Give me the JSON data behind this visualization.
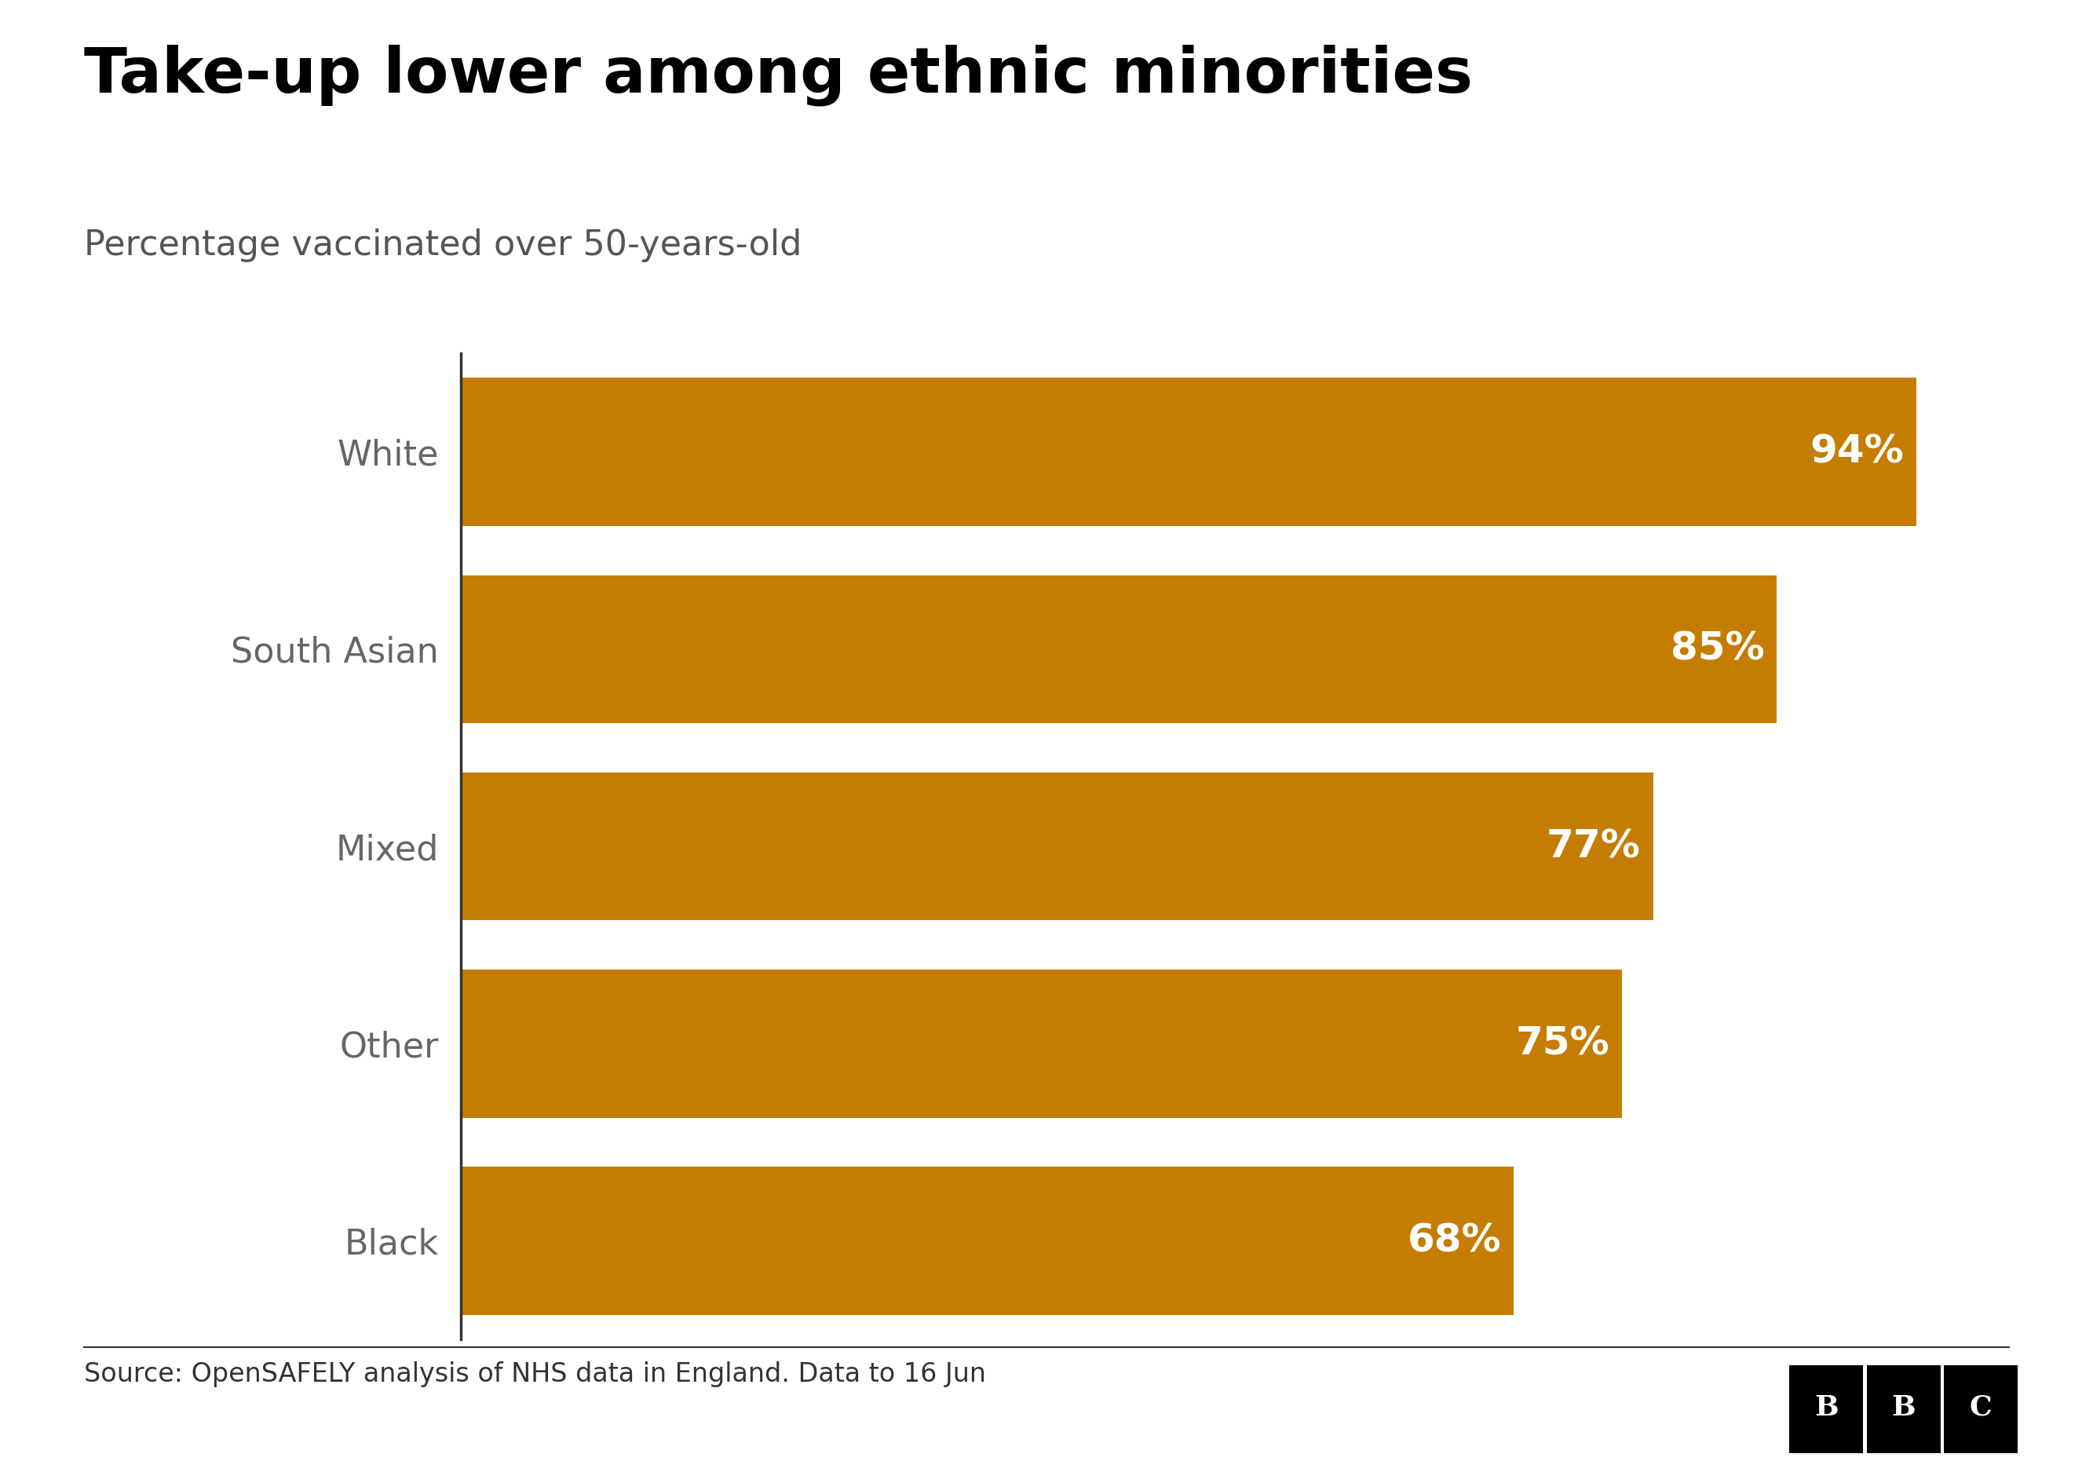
{
  "title": "Take-up lower among ethnic minorities",
  "subtitle": "Percentage vaccinated over 50-years-old",
  "source": "Source: OpenSAFELY analysis of NHS data in England. Data to 16 Jun",
  "categories": [
    "White",
    "South Asian",
    "Mixed",
    "Other",
    "Black"
  ],
  "values": [
    94,
    85,
    77,
    75,
    68
  ],
  "bar_color": "#C47D00",
  "label_color": "#ffffff",
  "title_color": "#000000",
  "subtitle_color": "#555555",
  "category_label_color": "#666666",
  "source_color": "#333333",
  "background_color": "#ffffff",
  "title_fontsize": 58,
  "subtitle_fontsize": 32,
  "category_fontsize": 32,
  "value_fontsize": 36,
  "source_fontsize": 24,
  "xlim": [
    0,
    100
  ],
  "bar_height": 0.75
}
